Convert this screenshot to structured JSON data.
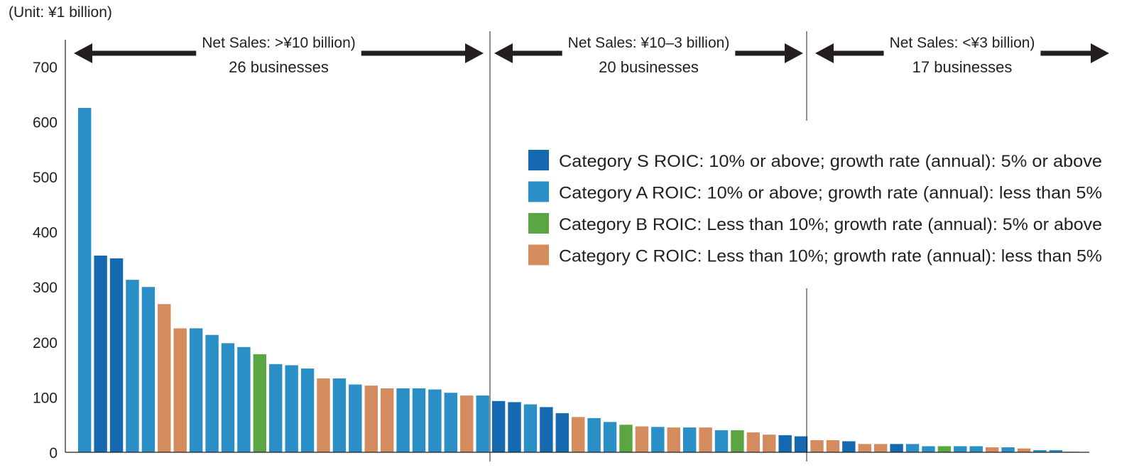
{
  "chart_data": {
    "type": "bar",
    "title": "",
    "unit_label": "(Unit: ¥1 billion)",
    "xlabel": "",
    "ylabel": "",
    "ylim": [
      0,
      720
    ],
    "yticks": [
      0,
      100,
      200,
      300,
      400,
      500,
      600,
      700
    ],
    "grid": false,
    "colors": {
      "S": "#1469b0",
      "A": "#2a8fc6",
      "B": "#5ba642",
      "C": "#d48c5f"
    },
    "legend": {
      "placement": "center-right",
      "entries": [
        {
          "category": "S",
          "label": "Category S ROIC: 10% or above; growth rate (annual): 5% or above"
        },
        {
          "category": "A",
          "label": "Category A ROIC: 10% or above; growth rate (annual): less than 5%"
        },
        {
          "category": "B",
          "label": "Category B ROIC: Less than 10%; growth rate (annual): 5% or above"
        },
        {
          "category": "C",
          "label": "Category C ROIC: Less than 10%; growth rate (annual): less than 5%"
        }
      ]
    },
    "groups": [
      {
        "title": "Net Sales: >¥10 billion)",
        "count_label": "26 businesses",
        "size": 26
      },
      {
        "title": "Net Sales: ¥10–3 billion)",
        "count_label": "20 businesses",
        "size": 20
      },
      {
        "title": "Net Sales: <¥3 billion)",
        "count_label": "17 businesses",
        "size": 17
      }
    ],
    "values": [
      625,
      357,
      352,
      313,
      300,
      269,
      225,
      225,
      213,
      198,
      191,
      178,
      160,
      158,
      152,
      134,
      134,
      123,
      121,
      116,
      116,
      116,
      114,
      108,
      103,
      103,
      93,
      91,
      87,
      82,
      71,
      64,
      62,
      55,
      50,
      47,
      46,
      45,
      45,
      45,
      40,
      40,
      36,
      32,
      31,
      29,
      22,
      22,
      20,
      15,
      15,
      15,
      15,
      11,
      11,
      11,
      11,
      9,
      9,
      7,
      4,
      4,
      1
    ],
    "categories": [
      "A",
      "S",
      "S",
      "A",
      "A",
      "C",
      "C",
      "A",
      "A",
      "A",
      "A",
      "B",
      "A",
      "A",
      "A",
      "C",
      "A",
      "A",
      "C",
      "C",
      "A",
      "A",
      "A",
      "A",
      "C",
      "A",
      "S",
      "S",
      "A",
      "S",
      "S",
      "C",
      "A",
      "A",
      "B",
      "C",
      "A",
      "C",
      "A",
      "C",
      "A",
      "B",
      "C",
      "C",
      "S",
      "S",
      "C",
      "C",
      "S",
      "C",
      "C",
      "S",
      "A",
      "A",
      "B",
      "A",
      "A",
      "C",
      "A",
      "C",
      "A",
      "A",
      "C"
    ]
  }
}
